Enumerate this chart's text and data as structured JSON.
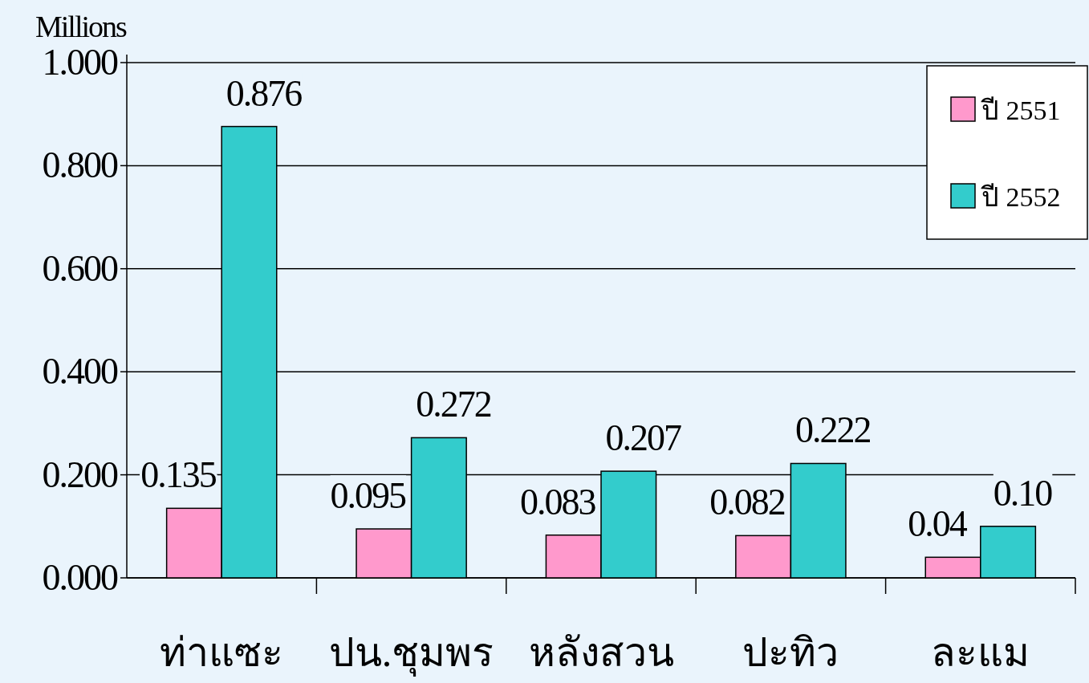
{
  "chart_data": {
    "type": "bar",
    "ylabel": "Millions",
    "categories": [
      "ท่าแซะ",
      "ปน.ชุมพร",
      "หลังสวน",
      "ปะทิว",
      "ละแม"
    ],
    "series": [
      {
        "name": "ปี 2551",
        "color": "#ff99cc",
        "values": [
          0.135,
          0.095,
          0.083,
          0.082,
          0.04
        ],
        "value_labels": [
          "0.135",
          "0.095",
          "0.083",
          "0.082",
          "0.04"
        ]
      },
      {
        "name": "ปี 2552",
        "color": "#33cccc",
        "values": [
          0.876,
          0.272,
          0.207,
          0.222,
          0.1
        ],
        "value_labels": [
          "0.876",
          "0.272",
          "0.207",
          "0.222",
          "0.10"
        ]
      }
    ],
    "ylim": [
      0,
      1
    ],
    "yticks": [
      {
        "value": 0,
        "label": "0.000"
      },
      {
        "value": 0.2,
        "label": "0.200"
      },
      {
        "value": 0.4,
        "label": "0.400"
      },
      {
        "value": 0.6,
        "label": "0.600"
      },
      {
        "value": 0.8,
        "label": "0.800"
      },
      {
        "value": 1,
        "label": "1.000"
      }
    ],
    "grid": "y",
    "legend": "top right"
  }
}
